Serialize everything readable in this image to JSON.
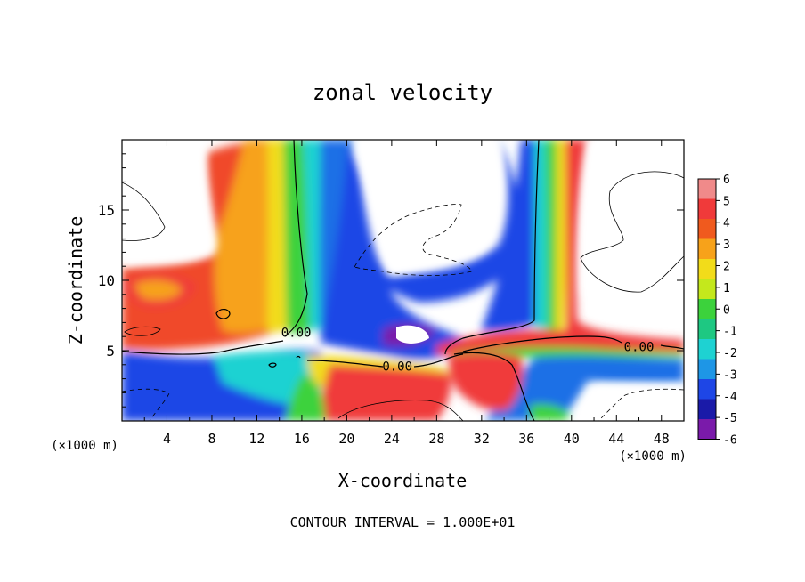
{
  "chart_data": {
    "type": "heatmap",
    "title": "zonal velocity",
    "xlabel": "X-coordinate",
    "ylabel": "Z-coordinate",
    "x_units": "(×1000 m)",
    "x_units_right": "(×1000 m)",
    "xlim": [
      0,
      50
    ],
    "ylim": [
      0,
      20
    ],
    "x_ticks": [
      4,
      8,
      12,
      16,
      20,
      24,
      28,
      32,
      36,
      40,
      44,
      48
    ],
    "y_ticks": [
      5,
      10,
      15
    ],
    "colorbar": {
      "levels": [
        6,
        5,
        4,
        3,
        2,
        1,
        0,
        -1,
        -2,
        -3,
        -4,
        -5,
        -6
      ],
      "colors": [
        "#f08a8a",
        "#f03a3a",
        "#f05a1e",
        "#f7a21a",
        "#f2dc1a",
        "#c4e81c",
        "#3cd23c",
        "#1ec882",
        "#1ed2d2",
        "#1e96e6",
        "#1e46e6",
        "#1a1aa8",
        "#7a1aaa"
      ]
    },
    "contour_labels": [
      {
        "text": "0.00",
        "x": 15.5,
        "y": 6.3
      },
      {
        "text": "0.00",
        "x": 24.5,
        "y": 3.9
      },
      {
        "text": "0.00",
        "x": 46.0,
        "y": 5.3
      }
    ],
    "footer": "CONTOUR INTERVAL = 1.000E+01",
    "grid": false,
    "legend": "colorbar-right"
  }
}
